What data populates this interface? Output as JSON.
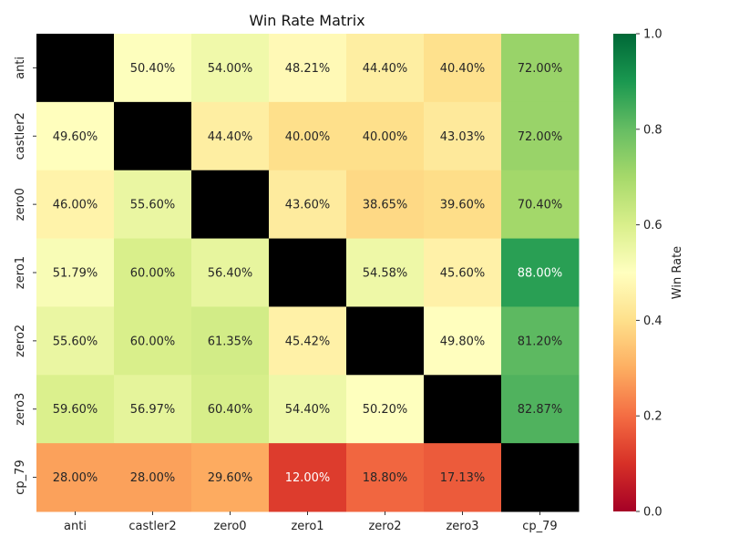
{
  "chart_data": {
    "type": "heatmap",
    "title": "Win Rate Matrix",
    "rows": [
      "anti",
      "castler2",
      "zero0",
      "zero1",
      "zero2",
      "zero3",
      "cp_79"
    ],
    "columns": [
      "anti",
      "castler2",
      "zero0",
      "zero1",
      "zero2",
      "zero3",
      "cp_79"
    ],
    "values": [
      [
        null,
        0.504,
        0.54,
        0.4821,
        0.444,
        0.404,
        0.72
      ],
      [
        0.496,
        null,
        0.444,
        0.4,
        0.4,
        0.4303,
        0.72
      ],
      [
        0.46,
        0.556,
        null,
        0.436,
        0.3865,
        0.396,
        0.704
      ],
      [
        0.5179,
        0.6,
        0.564,
        null,
        0.5458,
        0.456,
        0.88
      ],
      [
        0.556,
        0.6,
        0.6135,
        0.4542,
        null,
        0.498,
        0.812
      ],
      [
        0.596,
        0.5697,
        0.604,
        0.544,
        0.502,
        null,
        0.8287
      ],
      [
        0.28,
        0.28,
        0.296,
        0.12,
        0.188,
        0.1713,
        null
      ]
    ],
    "cell_labels": [
      [
        "",
        "50.40%",
        "54.00%",
        "48.21%",
        "44.40%",
        "40.40%",
        "72.00%"
      ],
      [
        "49.60%",
        "",
        "44.40%",
        "40.00%",
        "40.00%",
        "43.03%",
        "72.00%"
      ],
      [
        "46.00%",
        "55.60%",
        "",
        "43.60%",
        "38.65%",
        "39.60%",
        "70.40%"
      ],
      [
        "51.79%",
        "60.00%",
        "56.40%",
        "",
        "54.58%",
        "45.60%",
        "88.00%"
      ],
      [
        "55.60%",
        "60.00%",
        "61.35%",
        "45.42%",
        "",
        "49.80%",
        "81.20%"
      ],
      [
        "59.60%",
        "56.97%",
        "60.40%",
        "54.40%",
        "50.20%",
        "",
        "82.87%"
      ],
      [
        "28.00%",
        "28.00%",
        "29.60%",
        "12.00%",
        "18.80%",
        "17.13%",
        ""
      ]
    ],
    "diagonal_color": "#000000",
    "colormap": "RdYlGn",
    "vmin": 0.0,
    "vmax": 1.0,
    "colorbar": {
      "label": "Win Rate",
      "ticks": [
        0.0,
        0.2,
        0.4,
        0.6,
        0.8,
        1.0
      ],
      "tick_labels": [
        "0.0",
        "0.2",
        "0.4",
        "0.6",
        "0.8",
        "1.0"
      ]
    }
  }
}
